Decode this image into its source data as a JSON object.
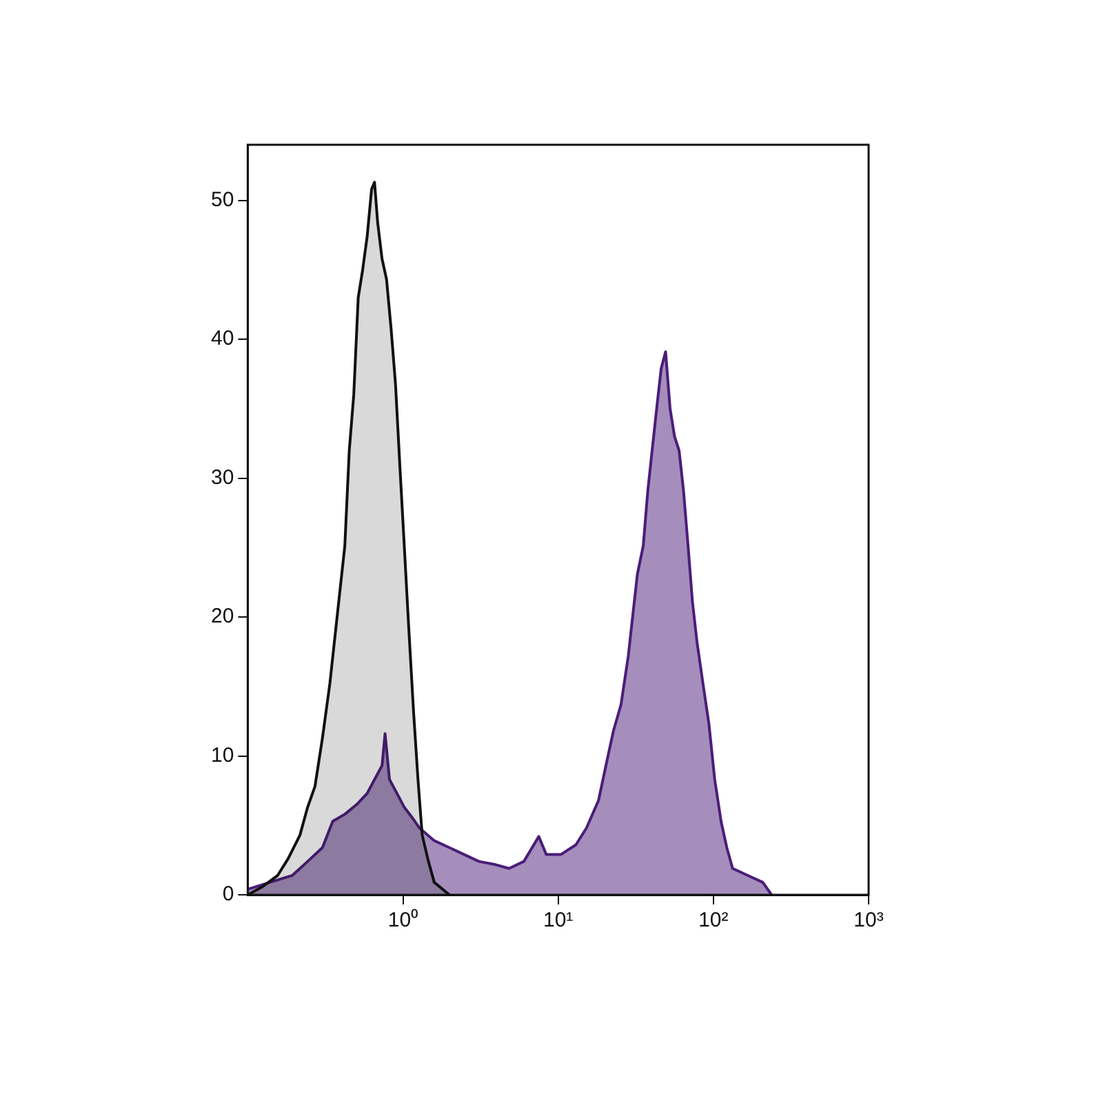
{
  "chart_data": {
    "type": "area",
    "log": "x",
    "grid": false,
    "legend": false,
    "marker": "none",
    "line_style": "solid",
    "xlim": [
      0.1,
      1000
    ],
    "ylim": [
      0,
      54
    ],
    "xticks": [
      {
        "value": 1,
        "label": "10⁰"
      },
      {
        "value": 10,
        "label": "10¹"
      },
      {
        "value": 100,
        "label": "10²"
      },
      {
        "value": 1000,
        "label": "10³"
      }
    ],
    "yticks": [
      0,
      10,
      20,
      30,
      40,
      50
    ],
    "series": [
      {
        "color": "#111111",
        "x": [
          0.1,
          0.125,
          0.156,
          0.182,
          0.217,
          0.243,
          0.271,
          0.303,
          0.338,
          0.378,
          0.422,
          0.451,
          0.482,
          0.515,
          0.55,
          0.588,
          0.628,
          0.656,
          0.687,
          0.733,
          0.784,
          0.838,
          0.895,
          0.956,
          1.02,
          1.09,
          1.17,
          1.25,
          1.33,
          1.46,
          1.59,
          1.99
        ],
        "values": [
          0,
          0.6,
          1.4,
          2.6,
          4.3,
          6.3,
          7.8,
          11.3,
          15.2,
          20.2,
          25.1,
          32,
          36,
          43,
          45,
          47.4,
          50.8,
          51.3,
          48.4,
          45.8,
          44.3,
          40.8,
          36.8,
          30.8,
          25.1,
          19.2,
          13.2,
          8.3,
          4.3,
          2.4,
          0.9,
          0
        ]
      },
      {
        "color": "#4b1d7a",
        "x": [
          0.1,
          0.139,
          0.194,
          0.243,
          0.303,
          0.353,
          0.422,
          0.503,
          0.588,
          0.656,
          0.733,
          0.767,
          0.819,
          0.915,
          1.02,
          1.14,
          1.28,
          1.59,
          1.99,
          2.48,
          3.09,
          3.86,
          4.82,
          6.01,
          7.5,
          8.38,
          10.4,
          13,
          15.2,
          18.2,
          20.3,
          22.7,
          25.4,
          28.3,
          30.3,
          32.4,
          35.3,
          37.8,
          40.3,
          43.1,
          46.1,
          49.2,
          52.6,
          56.2,
          60.1,
          64.2,
          68.7,
          73.3,
          78.4,
          85.7,
          93.6,
          102,
          112,
          122,
          133,
          166,
          208,
          237
        ],
        "values": [
          0.4,
          0.9,
          1.4,
          2.4,
          3.4,
          5.3,
          5.8,
          6.5,
          7.3,
          8.3,
          9.3,
          11.6,
          8.3,
          7.3,
          6.3,
          5.6,
          4.8,
          3.9,
          3.4,
          2.9,
          2.4,
          2.2,
          1.9,
          2.4,
          4.2,
          2.9,
          2.9,
          3.6,
          4.8,
          6.8,
          9.3,
          11.8,
          13.7,
          17.2,
          20.2,
          23.1,
          25.1,
          29.1,
          32,
          35,
          37.9,
          39.1,
          35,
          33,
          32,
          29.1,
          25.1,
          21.1,
          18.2,
          15.2,
          12.3,
          8.3,
          5.3,
          3.4,
          1.9,
          1.4,
          0.9,
          0
        ]
      }
    ]
  }
}
